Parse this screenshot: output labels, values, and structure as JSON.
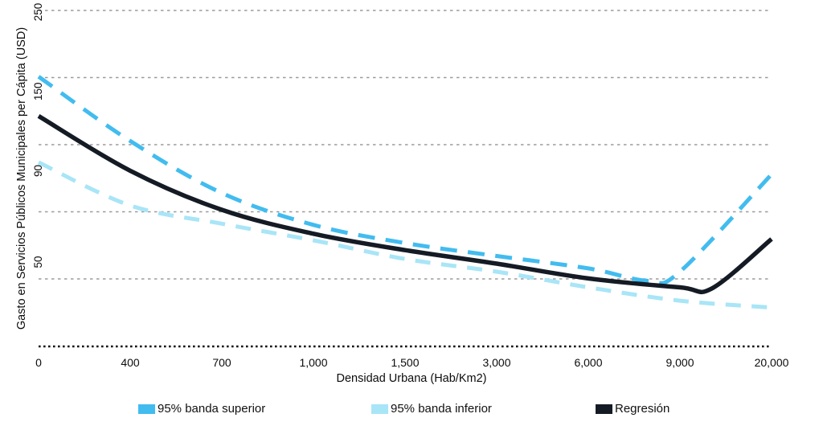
{
  "figure": {
    "background": "#ffffff",
    "y_axis": {
      "title": "Gasto en Servicios Públicos Municipales per Cápita (USD)",
      "tick_labels": [
        "250",
        "150",
        "90",
        "50"
      ],
      "tick_values": [
        250,
        150,
        90,
        50
      ],
      "scale": "log"
    },
    "x_axis": {
      "title": "Densidad Urbana (Hab/Km2)",
      "tick_labels": [
        "0",
        "400",
        "700",
        "1,000",
        "1,500",
        "3,000",
        "6,000",
        "9,000",
        "20,000"
      ]
    },
    "gridline_color": "#9b9b9b",
    "baseline_color": "#101010"
  },
  "legend": {
    "items": [
      {
        "label": "95% banda superior",
        "color": "#42BCEF"
      },
      {
        "label": "95% banda inferior",
        "color": "#A8E5F7"
      },
      {
        "label": "Regresión",
        "color": "#151B24"
      }
    ]
  },
  "chart_data": {
    "type": "line",
    "title": "",
    "xlabel": "Densidad Urbana (Hab/Km2)",
    "ylabel": "Gasto en Servicios Públicos Municipales per Cápita (USD)",
    "x_scale": "ordinal-equal-spacing",
    "y_scale": "log",
    "x_ticks": [
      0,
      400,
      700,
      1000,
      1500,
      3000,
      6000,
      9000,
      20000
    ],
    "x_tick_labels": [
      "0",
      "400",
      "700",
      "1,000",
      "1,500",
      "3,000",
      "6,000",
      "9,000",
      "20,000"
    ],
    "y_ticks": [
      250,
      150,
      90,
      50
    ],
    "ylim_displayed": [
      30,
      260
    ],
    "grid": "horizontal-dashed",
    "legend_position": "bottom",
    "series": [
      {
        "name": "95% banda superior",
        "color": "#42BCEF",
        "style": "dashed",
        "width": 5,
        "points": [
          {
            "x": 0,
            "v": 165,
            "xi": 0
          },
          {
            "x": 400,
            "v": 109,
            "xi": 1
          },
          {
            "x": 700,
            "v": 78,
            "xi": 2
          },
          {
            "x": 1000,
            "v": 63.5,
            "xi": 3
          },
          {
            "x": 1500,
            "v": 56.5,
            "xi": 4
          },
          {
            "x": 3000,
            "v": 52,
            "xi": 5
          },
          {
            "x": 6000,
            "v": 48,
            "xi": 6
          },
          {
            "x": 7800,
            "v": 44.3,
            "xi": 6.65
          },
          {
            "x": 9000,
            "v": 47,
            "xi": 7
          },
          {
            "x": 20000,
            "v": 88,
            "xi": 8
          }
        ]
      },
      {
        "name": "95% banda inferior",
        "color": "#A8E5F7",
        "style": "dashed",
        "width": 5,
        "points": [
          {
            "x": 0,
            "v": 95,
            "xi": 0
          },
          {
            "x": 400,
            "v": 72,
            "xi": 1
          },
          {
            "x": 700,
            "v": 64,
            "xi": 2
          },
          {
            "x": 1000,
            "v": 57.5,
            "xi": 3
          },
          {
            "x": 1500,
            "v": 51,
            "xi": 4
          },
          {
            "x": 3000,
            "v": 47,
            "xi": 5
          },
          {
            "x": 6000,
            "v": 42.5,
            "xi": 6
          },
          {
            "x": 9000,
            "v": 39,
            "xi": 7
          },
          {
            "x": 20000,
            "v": 37.3,
            "xi": 8
          }
        ]
      },
      {
        "name": "Regresión",
        "color": "#151B24",
        "style": "solid",
        "width": 5.5,
        "points": [
          {
            "x": 0,
            "v": 128,
            "xi": 0
          },
          {
            "x": 400,
            "v": 90,
            "xi": 1
          },
          {
            "x": 700,
            "v": 70,
            "xi": 2
          },
          {
            "x": 1000,
            "v": 60,
            "xi": 3
          },
          {
            "x": 1500,
            "v": 54,
            "xi": 4
          },
          {
            "x": 3000,
            "v": 49.5,
            "xi": 5
          },
          {
            "x": 6000,
            "v": 45,
            "xi": 6
          },
          {
            "x": 9000,
            "v": 42.5,
            "xi": 7
          },
          {
            "x": 12500,
            "v": 42.2,
            "xi": 7.35
          },
          {
            "x": 20000,
            "v": 58,
            "xi": 8
          }
        ]
      }
    ]
  }
}
